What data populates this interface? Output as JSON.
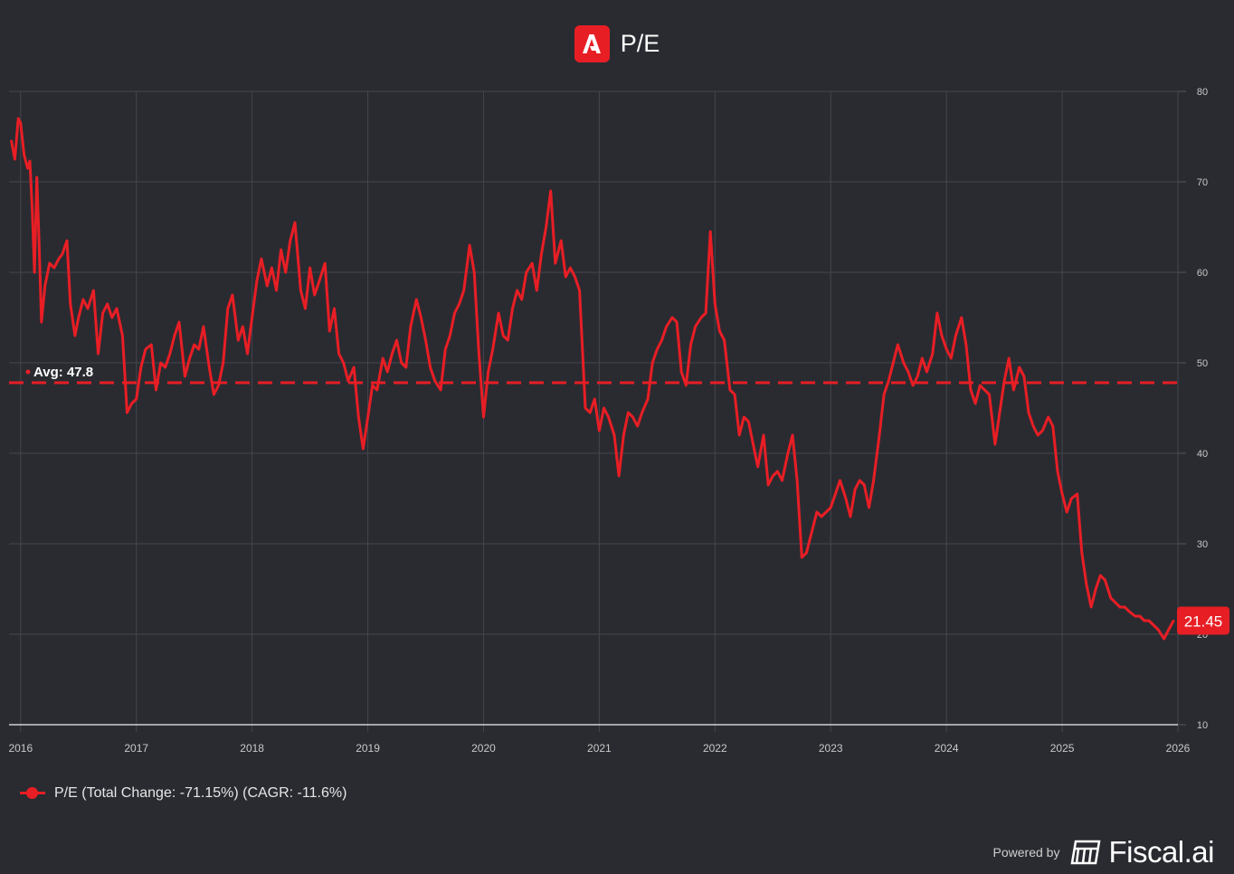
{
  "header": {
    "title": "P/E",
    "logo_icon": "adobe-logo-icon",
    "accent": "#e81e25"
  },
  "chart_data": {
    "type": "line",
    "title": "P/E",
    "x_ticks": [
      "2016",
      "2017",
      "2018",
      "2019",
      "2020",
      "2021",
      "2022",
      "2023",
      "2024",
      "2025",
      "2026"
    ],
    "y_ticks": [
      10,
      20,
      30,
      40,
      50,
      60,
      70,
      80
    ],
    "ylim": [
      10,
      80
    ],
    "xlim": [
      2015.9,
      2026.0
    ],
    "grid": true,
    "legend_position": "bottom-left",
    "series": [
      {
        "name": "P/E",
        "color": "#e81e25",
        "points": [
          [
            2015.92,
            74.5
          ],
          [
            2015.95,
            72.5
          ],
          [
            2015.98,
            77.0
          ],
          [
            2016.0,
            76.5
          ],
          [
            2016.03,
            73.0
          ],
          [
            2016.06,
            71.5
          ],
          [
            2016.08,
            72.3
          ],
          [
            2016.1,
            67.0
          ],
          [
            2016.12,
            60.0
          ],
          [
            2016.14,
            70.5
          ],
          [
            2016.16,
            63.0
          ],
          [
            2016.18,
            54.5
          ],
          [
            2016.21,
            58.5
          ],
          [
            2016.25,
            61.0
          ],
          [
            2016.29,
            60.5
          ],
          [
            2016.33,
            61.5
          ],
          [
            2016.36,
            62.0
          ],
          [
            2016.4,
            63.5
          ],
          [
            2016.43,
            56.5
          ],
          [
            2016.47,
            53.0
          ],
          [
            2016.5,
            55.0
          ],
          [
            2016.54,
            57.0
          ],
          [
            2016.58,
            56.0
          ],
          [
            2016.63,
            58.0
          ],
          [
            2016.67,
            51.0
          ],
          [
            2016.71,
            55.5
          ],
          [
            2016.75,
            56.5
          ],
          [
            2016.79,
            55.0
          ],
          [
            2016.83,
            56.0
          ],
          [
            2016.88,
            53.0
          ],
          [
            2016.92,
            44.5
          ],
          [
            2016.96,
            45.5
          ],
          [
            2017.0,
            46.0
          ],
          [
            2017.04,
            49.5
          ],
          [
            2017.08,
            51.5
          ],
          [
            2017.13,
            52.0
          ],
          [
            2017.17,
            47.0
          ],
          [
            2017.21,
            50.0
          ],
          [
            2017.25,
            49.5
          ],
          [
            2017.29,
            51.0
          ],
          [
            2017.33,
            53.0
          ],
          [
            2017.37,
            54.5
          ],
          [
            2017.42,
            48.5
          ],
          [
            2017.46,
            50.5
          ],
          [
            2017.5,
            52.0
          ],
          [
            2017.54,
            51.5
          ],
          [
            2017.58,
            54.0
          ],
          [
            2017.63,
            49.5
          ],
          [
            2017.67,
            46.5
          ],
          [
            2017.71,
            47.5
          ],
          [
            2017.75,
            50.0
          ],
          [
            2017.79,
            56.0
          ],
          [
            2017.83,
            57.5
          ],
          [
            2017.88,
            52.5
          ],
          [
            2017.92,
            54.0
          ],
          [
            2017.96,
            51.0
          ],
          [
            2018.0,
            55.0
          ],
          [
            2018.04,
            59.0
          ],
          [
            2018.08,
            61.5
          ],
          [
            2018.13,
            58.5
          ],
          [
            2018.17,
            60.5
          ],
          [
            2018.21,
            58.0
          ],
          [
            2018.25,
            62.5
          ],
          [
            2018.29,
            60.0
          ],
          [
            2018.33,
            63.5
          ],
          [
            2018.37,
            65.5
          ],
          [
            2018.42,
            58.0
          ],
          [
            2018.46,
            56.0
          ],
          [
            2018.5,
            60.5
          ],
          [
            2018.54,
            57.5
          ],
          [
            2018.58,
            59.0
          ],
          [
            2018.63,
            61.0
          ],
          [
            2018.67,
            53.5
          ],
          [
            2018.71,
            56.0
          ],
          [
            2018.75,
            51.0
          ],
          [
            2018.79,
            50.0
          ],
          [
            2018.83,
            48.0
          ],
          [
            2018.88,
            49.5
          ],
          [
            2018.92,
            44.0
          ],
          [
            2018.96,
            40.5
          ],
          [
            2019.0,
            44.0
          ],
          [
            2019.04,
            47.5
          ],
          [
            2019.08,
            47.0
          ],
          [
            2019.13,
            50.5
          ],
          [
            2019.17,
            49.0
          ],
          [
            2019.21,
            51.0
          ],
          [
            2019.25,
            52.5
          ],
          [
            2019.29,
            50.0
          ],
          [
            2019.33,
            49.5
          ],
          [
            2019.37,
            54.0
          ],
          [
            2019.42,
            57.0
          ],
          [
            2019.46,
            55.0
          ],
          [
            2019.5,
            52.5
          ],
          [
            2019.54,
            49.5
          ],
          [
            2019.58,
            48.0
          ],
          [
            2019.63,
            47.0
          ],
          [
            2019.67,
            51.5
          ],
          [
            2019.71,
            53.0
          ],
          [
            2019.75,
            55.5
          ],
          [
            2019.79,
            56.5
          ],
          [
            2019.83,
            58.0
          ],
          [
            2019.88,
            63.0
          ],
          [
            2019.92,
            60.0
          ],
          [
            2019.96,
            51.0
          ],
          [
            2020.0,
            44.0
          ],
          [
            2020.04,
            49.0
          ],
          [
            2020.08,
            51.5
          ],
          [
            2020.13,
            55.5
          ],
          [
            2020.17,
            53.0
          ],
          [
            2020.21,
            52.5
          ],
          [
            2020.25,
            56.0
          ],
          [
            2020.29,
            58.0
          ],
          [
            2020.33,
            57.0
          ],
          [
            2020.37,
            60.0
          ],
          [
            2020.42,
            61.0
          ],
          [
            2020.46,
            58.0
          ],
          [
            2020.5,
            62.0
          ],
          [
            2020.54,
            65.0
          ],
          [
            2020.58,
            69.0
          ],
          [
            2020.62,
            61.0
          ],
          [
            2020.67,
            63.5
          ],
          [
            2020.71,
            59.5
          ],
          [
            2020.75,
            60.5
          ],
          [
            2020.79,
            59.5
          ],
          [
            2020.83,
            58.0
          ],
          [
            2020.88,
            45.0
          ],
          [
            2020.92,
            44.5
          ],
          [
            2020.96,
            46.0
          ],
          [
            2021.0,
            42.5
          ],
          [
            2021.04,
            45.0
          ],
          [
            2021.08,
            44.0
          ],
          [
            2021.13,
            42.0
          ],
          [
            2021.17,
            37.5
          ],
          [
            2021.21,
            42.0
          ],
          [
            2021.25,
            44.5
          ],
          [
            2021.29,
            44.0
          ],
          [
            2021.33,
            43.0
          ],
          [
            2021.37,
            44.5
          ],
          [
            2021.42,
            46.0
          ],
          [
            2021.46,
            50.0
          ],
          [
            2021.5,
            51.5
          ],
          [
            2021.54,
            52.5
          ],
          [
            2021.58,
            54.0
          ],
          [
            2021.63,
            55.0
          ],
          [
            2021.67,
            54.5
          ],
          [
            2021.71,
            49.0
          ],
          [
            2021.75,
            47.5
          ],
          [
            2021.79,
            52.0
          ],
          [
            2021.83,
            54.0
          ],
          [
            2021.88,
            55.0
          ],
          [
            2021.92,
            55.5
          ],
          [
            2021.96,
            64.5
          ],
          [
            2022.0,
            56.5
          ],
          [
            2022.04,
            53.5
          ],
          [
            2022.08,
            52.5
          ],
          [
            2022.13,
            47.0
          ],
          [
            2022.17,
            46.5
          ],
          [
            2022.21,
            42.0
          ],
          [
            2022.25,
            44.0
          ],
          [
            2022.29,
            43.5
          ],
          [
            2022.33,
            41.0
          ],
          [
            2022.37,
            38.5
          ],
          [
            2022.42,
            42.0
          ],
          [
            2022.46,
            36.5
          ],
          [
            2022.5,
            37.5
          ],
          [
            2022.54,
            38.0
          ],
          [
            2022.58,
            37.0
          ],
          [
            2022.63,
            40.0
          ],
          [
            2022.67,
            42.0
          ],
          [
            2022.71,
            37.0
          ],
          [
            2022.75,
            28.5
          ],
          [
            2022.79,
            29.0
          ],
          [
            2022.83,
            31.0
          ],
          [
            2022.88,
            33.5
          ],
          [
            2022.92,
            33.0
          ],
          [
            2022.96,
            33.5
          ],
          [
            2023.0,
            34.0
          ],
          [
            2023.04,
            35.5
          ],
          [
            2023.08,
            37.0
          ],
          [
            2023.13,
            35.0
          ],
          [
            2023.17,
            33.0
          ],
          [
            2023.21,
            36.0
          ],
          [
            2023.25,
            37.0
          ],
          [
            2023.29,
            36.5
          ],
          [
            2023.33,
            34.0
          ],
          [
            2023.37,
            37.0
          ],
          [
            2023.42,
            42.0
          ],
          [
            2023.46,
            46.5
          ],
          [
            2023.5,
            48.0
          ],
          [
            2023.54,
            50.0
          ],
          [
            2023.58,
            52.0
          ],
          [
            2023.63,
            50.0
          ],
          [
            2023.67,
            49.0
          ],
          [
            2023.71,
            47.5
          ],
          [
            2023.75,
            48.5
          ],
          [
            2023.79,
            50.5
          ],
          [
            2023.83,
            49.0
          ],
          [
            2023.88,
            51.0
          ],
          [
            2023.92,
            55.5
          ],
          [
            2023.96,
            53.0
          ],
          [
            2024.0,
            51.5
          ],
          [
            2024.04,
            50.5
          ],
          [
            2024.08,
            53.0
          ],
          [
            2024.13,
            55.0
          ],
          [
            2024.17,
            52.0
          ],
          [
            2024.21,
            47.0
          ],
          [
            2024.25,
            45.5
          ],
          [
            2024.29,
            47.5
          ],
          [
            2024.33,
            47.0
          ],
          [
            2024.37,
            46.5
          ],
          [
            2024.42,
            41.0
          ],
          [
            2024.46,
            44.5
          ],
          [
            2024.5,
            48.0
          ],
          [
            2024.54,
            50.5
          ],
          [
            2024.58,
            47.0
          ],
          [
            2024.63,
            49.5
          ],
          [
            2024.67,
            48.5
          ],
          [
            2024.71,
            44.5
          ],
          [
            2024.75,
            43.0
          ],
          [
            2024.79,
            42.0
          ],
          [
            2024.83,
            42.5
          ],
          [
            2024.88,
            44.0
          ],
          [
            2024.92,
            43.0
          ],
          [
            2024.96,
            38.0
          ],
          [
            2025.0,
            35.5
          ],
          [
            2025.04,
            33.5
          ],
          [
            2025.08,
            35.0
          ],
          [
            2025.13,
            35.5
          ],
          [
            2025.17,
            29.0
          ],
          [
            2025.21,
            25.5
          ],
          [
            2025.25,
            23.0
          ],
          [
            2025.29,
            25.0
          ],
          [
            2025.33,
            26.5
          ],
          [
            2025.37,
            26.0
          ],
          [
            2025.42,
            24.0
          ],
          [
            2025.46,
            23.5
          ],
          [
            2025.5,
            23.0
          ],
          [
            2025.54,
            23.0
          ],
          [
            2025.58,
            22.5
          ],
          [
            2025.63,
            22.0
          ],
          [
            2025.67,
            22.0
          ],
          [
            2025.71,
            21.5
          ],
          [
            2025.75,
            21.5
          ],
          [
            2025.79,
            21.0
          ],
          [
            2025.83,
            20.5
          ],
          [
            2025.88,
            19.5
          ],
          [
            2025.92,
            20.5
          ],
          [
            2025.96,
            21.45
          ]
        ]
      }
    ],
    "average": {
      "value": 47.8,
      "label": "Avg: 47.8"
    },
    "last_value": {
      "value": 21.45,
      "label": "21.45"
    }
  },
  "legend": {
    "label": "P/E (Total Change: -71.15%) (CAGR: -11.6%)"
  },
  "footer": {
    "powered_by": "Powered by",
    "brand": "Fiscal.ai",
    "brand_icon": "fiscal-ai-logo-icon"
  }
}
